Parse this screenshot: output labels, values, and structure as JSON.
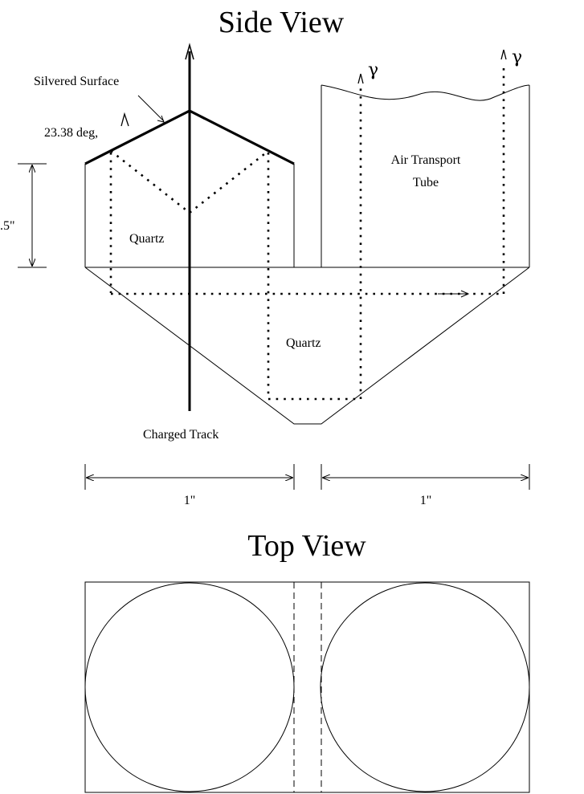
{
  "side_view": {
    "title": "Side View",
    "labels": {
      "silvered_surface": "Silvered Surface",
      "angle": "23.38 deg,",
      "height": ".5\"",
      "quartz_upper": "Quartz",
      "quartz_lower": "Quartz",
      "air_tube_line1": "Air Transport",
      "air_tube_line2": "Tube",
      "charged_track": "Charged Track",
      "gamma_left": "γ",
      "gamma_right": "γ",
      "width_left": "1\"",
      "width_right": "1\""
    }
  },
  "top_view": {
    "title": "Top View"
  }
}
